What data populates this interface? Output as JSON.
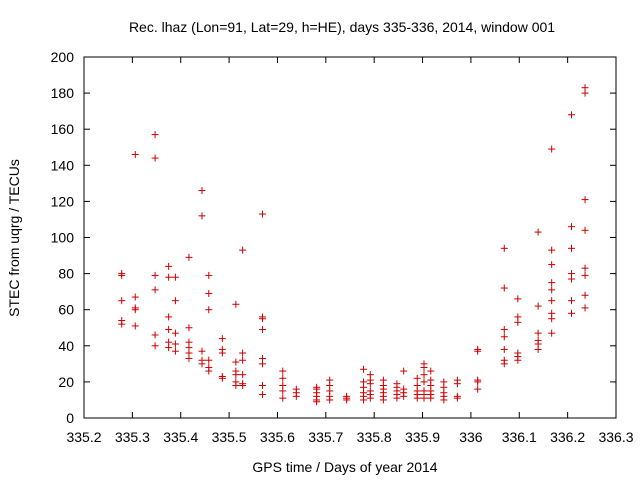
{
  "chart_data": {
    "type": "scatter",
    "title": "Rec. lhaz (Lon=91, Lat=29, h=HE), days 335-336, 2014, window 001",
    "xlabel": "GPS time / Days of year 2014",
    "ylabel": "STEC from uqrg / TECUs",
    "xlim": [
      335.2,
      336.3
    ],
    "ylim": [
      0,
      200
    ],
    "xticks": [
      "335.2",
      "335.3",
      "335.4",
      "335.5",
      "335.6",
      "335.7",
      "335.8",
      "335.9",
      "336",
      "336.1",
      "336.2",
      "336.3"
    ],
    "yticks": [
      "0",
      "20",
      "40",
      "60",
      "80",
      "100",
      "120",
      "140",
      "160",
      "180",
      "200"
    ],
    "grid": false,
    "legend": "none",
    "marker": "plus",
    "color": "#cc0000",
    "points": [
      [
        335.278,
        80
      ],
      [
        335.278,
        79
      ],
      [
        335.278,
        65
      ],
      [
        335.278,
        54
      ],
      [
        335.278,
        52
      ],
      [
        335.306,
        146
      ],
      [
        335.306,
        67
      ],
      [
        335.306,
        61
      ],
      [
        335.306,
        60
      ],
      [
        335.306,
        51
      ],
      [
        335.347,
        157
      ],
      [
        335.347,
        144
      ],
      [
        335.347,
        79
      ],
      [
        335.347,
        71
      ],
      [
        335.347,
        46
      ],
      [
        335.347,
        40
      ],
      [
        335.375,
        84
      ],
      [
        335.375,
        78
      ],
      [
        335.375,
        56
      ],
      [
        335.375,
        49
      ],
      [
        335.375,
        42
      ],
      [
        335.375,
        39
      ],
      [
        335.389,
        78
      ],
      [
        335.389,
        65
      ],
      [
        335.389,
        47
      ],
      [
        335.389,
        41
      ],
      [
        335.389,
        37
      ],
      [
        335.417,
        89
      ],
      [
        335.417,
        50
      ],
      [
        335.417,
        42
      ],
      [
        335.417,
        39
      ],
      [
        335.417,
        36
      ],
      [
        335.417,
        33
      ],
      [
        335.444,
        126
      ],
      [
        335.444,
        112
      ],
      [
        335.444,
        37
      ],
      [
        335.444,
        32
      ],
      [
        335.444,
        30
      ],
      [
        335.458,
        79
      ],
      [
        335.458,
        69
      ],
      [
        335.458,
        60
      ],
      [
        335.458,
        32
      ],
      [
        335.458,
        28
      ],
      [
        335.458,
        26
      ],
      [
        335.486,
        44
      ],
      [
        335.486,
        38
      ],
      [
        335.486,
        36
      ],
      [
        335.486,
        23
      ],
      [
        335.486,
        22
      ],
      [
        335.514,
        63
      ],
      [
        335.514,
        31
      ],
      [
        335.514,
        26
      ],
      [
        335.514,
        24
      ],
      [
        335.514,
        20
      ],
      [
        335.514,
        18
      ],
      [
        335.528,
        93
      ],
      [
        335.528,
        36
      ],
      [
        335.528,
        32
      ],
      [
        335.528,
        24
      ],
      [
        335.528,
        19
      ],
      [
        335.528,
        18
      ],
      [
        335.569,
        113
      ],
      [
        335.569,
        56
      ],
      [
        335.569,
        55
      ],
      [
        335.569,
        49
      ],
      [
        335.569,
        33
      ],
      [
        335.569,
        30
      ],
      [
        335.569,
        18
      ],
      [
        335.569,
        13
      ],
      [
        335.611,
        26
      ],
      [
        335.611,
        22
      ],
      [
        335.611,
        18
      ],
      [
        335.611,
        15
      ],
      [
        335.611,
        11
      ],
      [
        335.639,
        16
      ],
      [
        335.639,
        14
      ],
      [
        335.639,
        12
      ],
      [
        335.681,
        17
      ],
      [
        335.681,
        16
      ],
      [
        335.681,
        14
      ],
      [
        335.681,
        12
      ],
      [
        335.681,
        10
      ],
      [
        335.681,
        9
      ],
      [
        335.708,
        21
      ],
      [
        335.708,
        18
      ],
      [
        335.708,
        15
      ],
      [
        335.708,
        12
      ],
      [
        335.708,
        10
      ],
      [
        335.743,
        12
      ],
      [
        335.743,
        11
      ],
      [
        335.743,
        10
      ],
      [
        335.778,
        27
      ],
      [
        335.778,
        20
      ],
      [
        335.778,
        17
      ],
      [
        335.778,
        14
      ],
      [
        335.778,
        12
      ],
      [
        335.778,
        10
      ],
      [
        335.792,
        24
      ],
      [
        335.792,
        21
      ],
      [
        335.792,
        19
      ],
      [
        335.792,
        15
      ],
      [
        335.792,
        13
      ],
      [
        335.792,
        11
      ],
      [
        335.819,
        21
      ],
      [
        335.819,
        18
      ],
      [
        335.819,
        16
      ],
      [
        335.819,
        14
      ],
      [
        335.819,
        12
      ],
      [
        335.819,
        10
      ],
      [
        335.847,
        19
      ],
      [
        335.847,
        17
      ],
      [
        335.847,
        15
      ],
      [
        335.847,
        13
      ],
      [
        335.847,
        11
      ],
      [
        335.861,
        26
      ],
      [
        335.861,
        16
      ],
      [
        335.861,
        14
      ],
      [
        335.861,
        12
      ],
      [
        335.889,
        22
      ],
      [
        335.889,
        18
      ],
      [
        335.889,
        15
      ],
      [
        335.889,
        13
      ],
      [
        335.889,
        11
      ],
      [
        335.903,
        30
      ],
      [
        335.903,
        28
      ],
      [
        335.903,
        24
      ],
      [
        335.903,
        20
      ],
      [
        335.903,
        15
      ],
      [
        335.903,
        13
      ],
      [
        335.903,
        11
      ],
      [
        335.917,
        26
      ],
      [
        335.917,
        21
      ],
      [
        335.917,
        18
      ],
      [
        335.917,
        15
      ],
      [
        335.917,
        13
      ],
      [
        335.917,
        11
      ],
      [
        335.944,
        20
      ],
      [
        335.944,
        17
      ],
      [
        335.944,
        14
      ],
      [
        335.944,
        12
      ],
      [
        335.944,
        10
      ],
      [
        335.972,
        21
      ],
      [
        335.972,
        19
      ],
      [
        335.972,
        12
      ],
      [
        335.972,
        11
      ],
      [
        336.014,
        38
      ],
      [
        336.014,
        37
      ],
      [
        336.014,
        21
      ],
      [
        336.014,
        20
      ],
      [
        336.014,
        16
      ],
      [
        336.069,
        94
      ],
      [
        336.069,
        72
      ],
      [
        336.069,
        49
      ],
      [
        336.069,
        45
      ],
      [
        336.069,
        38
      ],
      [
        336.069,
        32
      ],
      [
        336.069,
        30
      ],
      [
        336.097,
        66
      ],
      [
        336.097,
        56
      ],
      [
        336.097,
        53
      ],
      [
        336.097,
        36
      ],
      [
        336.097,
        34
      ],
      [
        336.097,
        32
      ],
      [
        336.139,
        103
      ],
      [
        336.139,
        62
      ],
      [
        336.139,
        47
      ],
      [
        336.139,
        43
      ],
      [
        336.139,
        41
      ],
      [
        336.139,
        38
      ],
      [
        336.167,
        149
      ],
      [
        336.167,
        93
      ],
      [
        336.167,
        85
      ],
      [
        336.167,
        75
      ],
      [
        336.167,
        71
      ],
      [
        336.167,
        65
      ],
      [
        336.167,
        58
      ],
      [
        336.167,
        55
      ],
      [
        336.167,
        47
      ],
      [
        336.208,
        168
      ],
      [
        336.208,
        106
      ],
      [
        336.208,
        94
      ],
      [
        336.208,
        80
      ],
      [
        336.208,
        77
      ],
      [
        336.208,
        65
      ],
      [
        336.208,
        58
      ],
      [
        336.236,
        183
      ],
      [
        336.236,
        180
      ],
      [
        336.236,
        121
      ],
      [
        336.236,
        104
      ],
      [
        336.236,
        83
      ],
      [
        336.236,
        79
      ],
      [
        336.236,
        68
      ],
      [
        336.236,
        61
      ]
    ]
  }
}
